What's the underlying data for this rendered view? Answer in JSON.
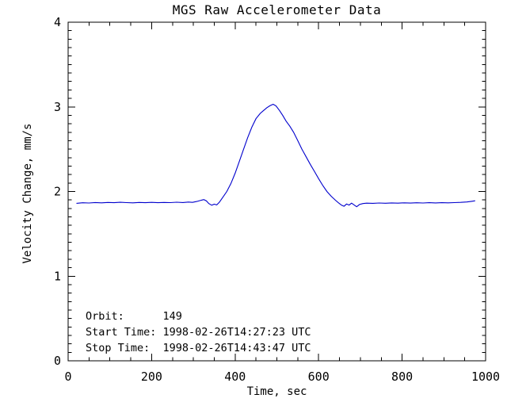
{
  "chart_data": {
    "type": "line",
    "title": "MGS Raw Accelerometer Data",
    "xlabel": "Time, sec",
    "ylabel": "Velocity Change, mm/s",
    "xlim": [
      0,
      1000
    ],
    "ylim": [
      0,
      4
    ],
    "x_major_ticks": [
      0,
      200,
      400,
      600,
      800,
      1000
    ],
    "x_minor_step": 50,
    "y_major_ticks": [
      0,
      1,
      2,
      3,
      4
    ],
    "y_minor_step": 0.1,
    "grid": false,
    "legend": "none",
    "line_color": "#0000cd",
    "axis_color": "#000000",
    "background_color": "#ffffff",
    "annotations": [
      "Orbit:      149",
      "Start Time: 1998-02-26T14:27:23 UTC",
      "Stop Time:  1998-02-26T14:43:47 UTC"
    ],
    "series": [
      {
        "name": "velocity-change",
        "points": [
          [
            20,
            1.86
          ],
          [
            35,
            1.867
          ],
          [
            50,
            1.864
          ],
          [
            65,
            1.87
          ],
          [
            80,
            1.866
          ],
          [
            95,
            1.871
          ],
          [
            110,
            1.868
          ],
          [
            125,
            1.873
          ],
          [
            140,
            1.869
          ],
          [
            155,
            1.866
          ],
          [
            170,
            1.871
          ],
          [
            185,
            1.868
          ],
          [
            200,
            1.872
          ],
          [
            215,
            1.868
          ],
          [
            230,
            1.871
          ],
          [
            245,
            1.869
          ],
          [
            260,
            1.874
          ],
          [
            275,
            1.87
          ],
          [
            288,
            1.875
          ],
          [
            298,
            1.872
          ],
          [
            308,
            1.882
          ],
          [
            318,
            1.896
          ],
          [
            325,
            1.904
          ],
          [
            331,
            1.89
          ],
          [
            337,
            1.858
          ],
          [
            344,
            1.838
          ],
          [
            350,
            1.85
          ],
          [
            356,
            1.842
          ],
          [
            362,
            1.872
          ],
          [
            370,
            1.928
          ],
          [
            380,
            2.0
          ],
          [
            390,
            2.095
          ],
          [
            400,
            2.215
          ],
          [
            410,
            2.355
          ],
          [
            420,
            2.495
          ],
          [
            430,
            2.635
          ],
          [
            440,
            2.76
          ],
          [
            450,
            2.86
          ],
          [
            460,
            2.922
          ],
          [
            468,
            2.956
          ],
          [
            476,
            2.99
          ],
          [
            484,
            3.015
          ],
          [
            491,
            3.03
          ],
          [
            498,
            3.012
          ],
          [
            506,
            2.958
          ],
          [
            514,
            2.898
          ],
          [
            522,
            2.832
          ],
          [
            531,
            2.772
          ],
          [
            540,
            2.7
          ],
          [
            550,
            2.6
          ],
          [
            560,
            2.5
          ],
          [
            570,
            2.41
          ],
          [
            580,
            2.32
          ],
          [
            590,
            2.238
          ],
          [
            600,
            2.152
          ],
          [
            610,
            2.07
          ],
          [
            620,
            2.0
          ],
          [
            630,
            1.945
          ],
          [
            640,
            1.898
          ],
          [
            648,
            1.864
          ],
          [
            655,
            1.838
          ],
          [
            661,
            1.826
          ],
          [
            667,
            1.852
          ],
          [
            673,
            1.84
          ],
          [
            679,
            1.862
          ],
          [
            685,
            1.842
          ],
          [
            691,
            1.82
          ],
          [
            698,
            1.846
          ],
          [
            706,
            1.858
          ],
          [
            715,
            1.862
          ],
          [
            730,
            1.86
          ],
          [
            745,
            1.864
          ],
          [
            760,
            1.861
          ],
          [
            775,
            1.865
          ],
          [
            790,
            1.862
          ],
          [
            805,
            1.866
          ],
          [
            820,
            1.863
          ],
          [
            835,
            1.867
          ],
          [
            850,
            1.864
          ],
          [
            865,
            1.868
          ],
          [
            880,
            1.865
          ],
          [
            895,
            1.868
          ],
          [
            910,
            1.866
          ],
          [
            925,
            1.869
          ],
          [
            940,
            1.872
          ],
          [
            955,
            1.876
          ],
          [
            966,
            1.884
          ],
          [
            975,
            1.89
          ]
        ]
      }
    ]
  }
}
